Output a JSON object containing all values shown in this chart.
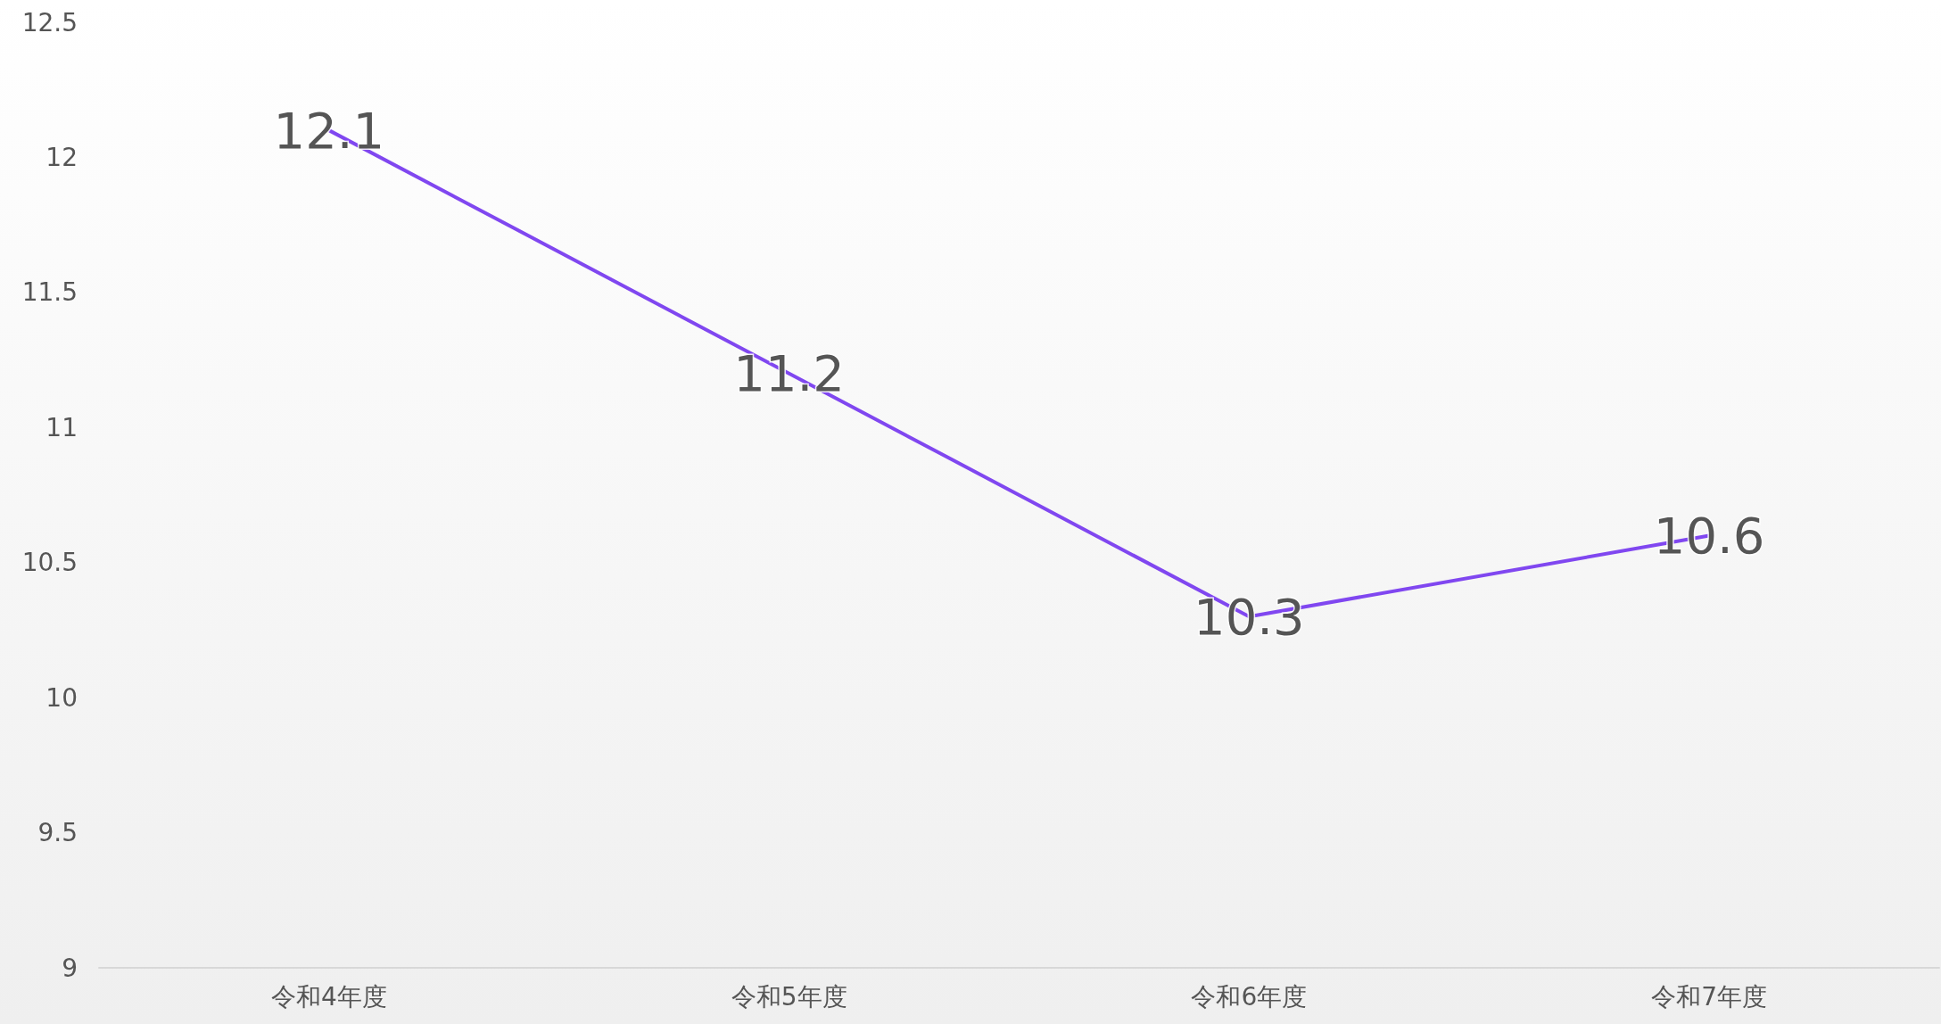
{
  "chart_data": {
    "type": "line",
    "categories": [
      "令和4年度",
      "令和5年度",
      "令和6年度",
      "令和7年度"
    ],
    "series": [
      {
        "color": "#8047f0",
        "values": [
          12.1,
          11.2,
          10.3,
          10.6
        ]
      }
    ],
    "ylim": [
      9,
      12.5
    ],
    "yticks": [
      9,
      9.5,
      10,
      10.5,
      11,
      11.5,
      12,
      12.5
    ],
    "grid": false,
    "marker": "none",
    "line_style": "solid",
    "data_labels": true
  }
}
